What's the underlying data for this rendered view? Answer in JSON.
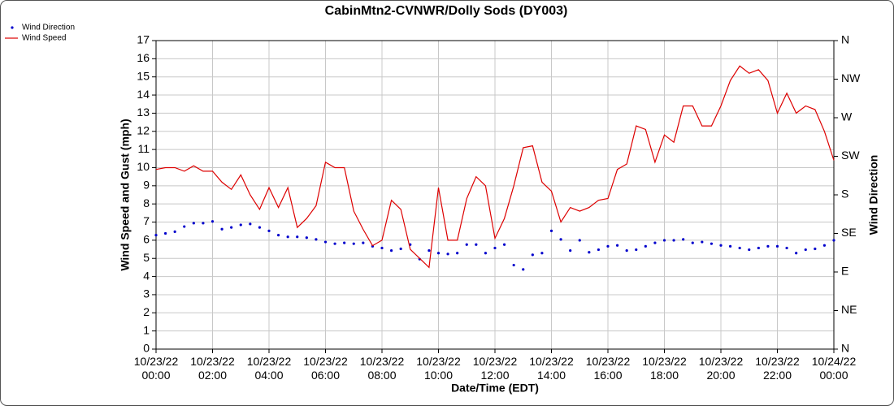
{
  "chart_data": {
    "type": "line",
    "title": "CabinMtn2-CVNWR/Dolly Sods (DY003)",
    "xlabel": "Date/Time (EDT)",
    "ylabel": "Wind Speed and Gust (mph)",
    "y2label": "Wind Direction",
    "x": [
      "10/23/22 00:00",
      "10/23/22 00:20",
      "10/23/22 00:40",
      "10/23/22 01:00",
      "10/23/22 01:20",
      "10/23/22 01:40",
      "10/23/22 02:00",
      "10/23/22 02:20",
      "10/23/22 02:40",
      "10/23/22 03:00",
      "10/23/22 03:20",
      "10/23/22 03:40",
      "10/23/22 04:00",
      "10/23/22 04:20",
      "10/23/22 04:40",
      "10/23/22 05:00",
      "10/23/22 05:20",
      "10/23/22 05:40",
      "10/23/22 06:00",
      "10/23/22 06:20",
      "10/23/22 06:40",
      "10/23/22 07:00",
      "10/23/22 07:20",
      "10/23/22 07:40",
      "10/23/22 08:00",
      "10/23/22 08:20",
      "10/23/22 08:40",
      "10/23/22 09:00",
      "10/23/22 09:20",
      "10/23/22 09:40",
      "10/23/22 10:00",
      "10/23/22 10:20",
      "10/23/22 10:40",
      "10/23/22 11:00",
      "10/23/22 11:20",
      "10/23/22 11:40",
      "10/23/22 12:00",
      "10/23/22 12:20",
      "10/23/22 12:40",
      "10/23/22 13:00",
      "10/23/22 13:20",
      "10/23/22 13:40",
      "10/23/22 14:00",
      "10/23/22 14:20",
      "10/23/22 14:40",
      "10/23/22 15:00",
      "10/23/22 15:20",
      "10/23/22 15:40",
      "10/23/22 16:00",
      "10/23/22 16:20",
      "10/23/22 16:40",
      "10/23/22 17:00",
      "10/23/22 17:20",
      "10/23/22 17:40",
      "10/23/22 18:00",
      "10/23/22 18:20",
      "10/23/22 18:40",
      "10/23/22 19:00",
      "10/23/22 19:20",
      "10/23/22 19:40",
      "10/23/22 20:00",
      "10/23/22 20:20",
      "10/23/22 20:40",
      "10/23/22 21:00",
      "10/23/22 21:20",
      "10/23/22 21:40",
      "10/23/22 22:00",
      "10/23/22 22:20",
      "10/23/22 22:40",
      "10/23/22 23:00",
      "10/23/22 23:20",
      "10/23/22 23:40",
      "10/24/22 00:00"
    ],
    "series": [
      {
        "name": "Wind Direction",
        "color": "#0000cc",
        "axis": "y2",
        "style": "dots",
        "values": [
          133,
          135,
          137,
          143,
          147,
          147,
          149,
          140,
          142,
          145,
          146,
          142,
          138,
          133,
          131,
          131,
          130,
          128,
          125,
          123,
          124,
          123,
          124,
          120,
          118,
          115,
          117,
          122,
          105,
          115,
          112,
          111,
          112,
          122,
          122,
          112,
          118,
          122,
          98,
          93,
          110,
          112,
          138,
          128,
          115,
          127,
          113,
          116,
          120,
          121,
          115,
          116,
          120,
          124,
          127,
          127,
          128,
          124,
          125,
          123,
          121,
          120,
          118,
          116,
          118,
          120,
          120,
          118,
          112,
          116,
          117,
          121,
          127
        ]
      },
      {
        "name": "Wind Speed",
        "color": "#dd0000",
        "style": "line",
        "values": [
          9.9,
          10.0,
          10.0,
          9.8,
          10.1,
          9.8,
          9.8,
          9.2,
          8.8,
          9.6,
          8.5,
          7.7,
          8.9,
          7.8,
          8.9,
          6.7,
          7.2,
          7.9,
          10.3,
          10.0,
          10.0,
          7.6,
          6.6,
          5.7,
          6.0,
          8.2,
          7.7,
          5.5,
          5.0,
          4.5,
          8.9,
          6.0,
          6.0,
          8.3,
          9.5,
          9.0,
          6.1,
          7.2,
          9.0,
          11.1,
          11.2,
          9.2,
          8.7,
          7.0,
          7.8,
          7.6,
          7.8,
          8.2,
          8.3,
          9.9,
          10.2,
          12.3,
          12.1,
          10.3,
          11.8,
          11.4,
          13.4,
          13.4,
          12.3,
          12.3,
          13.4,
          14.8,
          15.6,
          15.2,
          15.4,
          14.8,
          13.0,
          14.1,
          13.0,
          13.4,
          13.2,
          12.0,
          10.4
        ]
      }
    ],
    "xlim": [
      "10/23/22 00:00",
      "10/24/22 00:00"
    ],
    "xticks": [
      "10/23/22 00:00",
      "10/23/22 02:00",
      "10/23/22 04:00",
      "10/23/22 06:00",
      "10/23/22 08:00",
      "10/23/22 10:00",
      "10/23/22 12:00",
      "10/23/22 14:00",
      "10/23/22 16:00",
      "10/23/22 18:00",
      "10/23/22 20:00",
      "10/23/22 22:00",
      "10/24/22 00:00"
    ],
    "ylim": [
      0,
      17
    ],
    "yticks": [
      0,
      1,
      2,
      3,
      4,
      5,
      6,
      7,
      8,
      9,
      10,
      11,
      12,
      13,
      14,
      15,
      16,
      17
    ],
    "y2lim": [
      0,
      360
    ],
    "y2ticks": [
      {
        "value": 0,
        "label": "N"
      },
      {
        "value": 45,
        "label": "NE"
      },
      {
        "value": 90,
        "label": "E"
      },
      {
        "value": 135,
        "label": "SE"
      },
      {
        "value": 180,
        "label": "S"
      },
      {
        "value": 225,
        "label": "SW"
      },
      {
        "value": 270,
        "label": "W"
      },
      {
        "value": 315,
        "label": "NW"
      },
      {
        "value": 360,
        "label": "N"
      }
    ],
    "grid": true,
    "legend": "upper left"
  }
}
